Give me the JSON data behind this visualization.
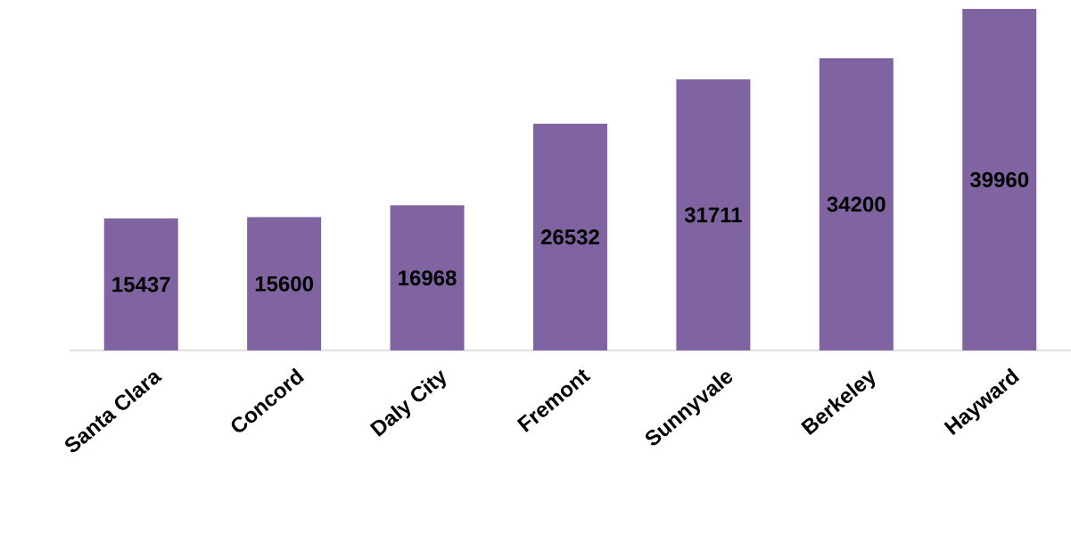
{
  "chart_data": {
    "type": "bar",
    "categories": [
      "Santa Clara",
      "Concord",
      "Daly City",
      "Fremont",
      "Sunnyvale",
      "Berkeley",
      "Hayward"
    ],
    "values": [
      15437,
      15600,
      16968,
      26532,
      31711,
      34200,
      39960
    ],
    "color": "#8064a2",
    "tick_labels": "x",
    "data_labels": true
  }
}
